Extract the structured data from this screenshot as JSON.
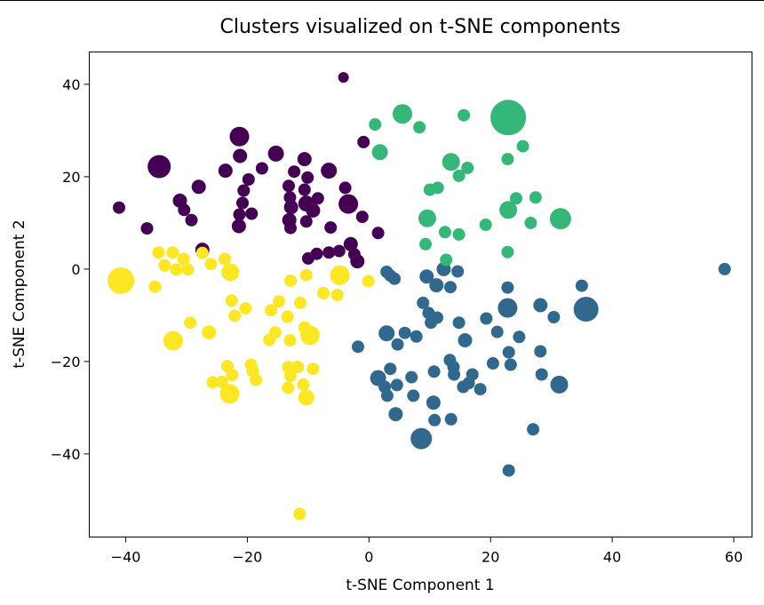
{
  "chart_data": {
    "type": "scatter",
    "title": "Clusters visualized on t-SNE components",
    "xlabel": "t-SNE Component 1",
    "ylabel": "t-SNE Component 2",
    "xlim": [
      -46,
      63
    ],
    "ylim": [
      -58,
      47
    ],
    "xticks": [
      -40,
      -20,
      0,
      20,
      40,
      60
    ],
    "yticks": [
      -40,
      -20,
      0,
      20,
      40
    ],
    "xtick_labels": [
      "−40",
      "−20",
      "0",
      "20",
      "40",
      "60"
    ],
    "ytick_labels": [
      "−40",
      "−20",
      "0",
      "20",
      "40"
    ],
    "grid": false,
    "legend": "none",
    "series": [
      {
        "color": "#440154",
        "points": [
          [
            -4.2,
            41.5
          ],
          [
            -21.3,
            28.7
          ],
          [
            -0.9,
            27.5
          ],
          [
            -34.5,
            22.2
          ],
          [
            -15.3,
            25.0
          ],
          [
            -21.2,
            24.5
          ],
          [
            -10.6,
            23.8
          ],
          [
            -23.6,
            21.3
          ],
          [
            -17.6,
            21.8
          ],
          [
            -12.3,
            21.1
          ],
          [
            -6.6,
            21.3
          ],
          [
            -10.1,
            19.8
          ],
          [
            -19.8,
            19.4
          ],
          [
            -28.0,
            17.8
          ],
          [
            -13.2,
            18.0
          ],
          [
            -20.6,
            17.0
          ],
          [
            -10.6,
            17.2
          ],
          [
            -3.9,
            17.6
          ],
          [
            -13.0,
            15.5
          ],
          [
            -31.1,
            14.8
          ],
          [
            -20.8,
            14.3
          ],
          [
            -10.3,
            14.2
          ],
          [
            -8.4,
            15.3
          ],
          [
            -12.8,
            13.4
          ],
          [
            -30.4,
            12.8
          ],
          [
            -3.4,
            14.1
          ],
          [
            -41.1,
            13.3
          ],
          [
            -19.3,
            12.0
          ],
          [
            -9.2,
            12.7
          ],
          [
            -21.3,
            11.8
          ],
          [
            -1.1,
            11.3
          ],
          [
            -29.2,
            10.6
          ],
          [
            -13.1,
            10.6
          ],
          [
            -10.3,
            10.3
          ],
          [
            -36.5,
            8.8
          ],
          [
            -21.4,
            9.3
          ],
          [
            -12.9,
            8.9
          ],
          [
            -6.3,
            9.0
          ],
          [
            1.5,
            7.8
          ],
          [
            -3.0,
            5.4
          ],
          [
            -4.9,
            3.9
          ],
          [
            -6.6,
            3.6
          ],
          [
            -27.4,
            4.2
          ],
          [
            -2.4,
            3.2
          ],
          [
            -8.6,
            3.3
          ],
          [
            -10.0,
            2.3
          ],
          [
            -1.9,
            1.7
          ]
        ],
        "sizes": [
          6,
          11,
          7,
          13,
          9,
          8,
          8,
          8,
          7,
          7,
          9,
          7,
          7,
          8,
          7,
          7,
          7,
          7,
          7,
          8,
          7,
          9,
          7,
          8,
          7,
          11,
          7,
          7,
          8,
          7,
          7,
          7,
          8,
          7,
          7,
          8,
          7,
          7,
          7,
          8,
          7,
          7,
          8,
          7,
          7,
          7,
          8
        ]
      },
      {
        "color": "#31688e",
        "points": [
          [
            58.5,
            0.0
          ],
          [
            2.9,
            -0.6
          ],
          [
            3.5,
            -1.4
          ],
          [
            12.3,
            0.0
          ],
          [
            14.6,
            -0.5
          ],
          [
            4.2,
            -2.1
          ],
          [
            9.5,
            -1.6
          ],
          [
            11.1,
            -3.5
          ],
          [
            22.8,
            -4.0
          ],
          [
            13.4,
            -3.9
          ],
          [
            35.0,
            -3.6
          ],
          [
            8.9,
            -7.3
          ],
          [
            22.8,
            -8.4
          ],
          [
            35.7,
            -8.7
          ],
          [
            28.2,
            -7.8
          ],
          [
            9.8,
            -9.5
          ],
          [
            11.2,
            -10.5
          ],
          [
            19.3,
            -10.7
          ],
          [
            10.2,
            -11.6
          ],
          [
            14.8,
            -11.6
          ],
          [
            30.4,
            -10.4
          ],
          [
            2.9,
            -13.9
          ],
          [
            5.9,
            -13.8
          ],
          [
            21.1,
            -13.6
          ],
          [
            24.7,
            -14.7
          ],
          [
            7.8,
            -14.6
          ],
          [
            -1.8,
            -16.8
          ],
          [
            4.7,
            -16.3
          ],
          [
            15.8,
            -15.4
          ],
          [
            28.2,
            -17.8
          ],
          [
            23.0,
            -18.0
          ],
          [
            13.3,
            -19.7
          ],
          [
            13.9,
            -21.2
          ],
          [
            20.4,
            -20.4
          ],
          [
            23.3,
            -20.7
          ],
          [
            3.5,
            -21.6
          ],
          [
            10.7,
            -22.2
          ],
          [
            14.0,
            -22.8
          ],
          [
            16.4,
            -24.7
          ],
          [
            17.0,
            -22.8
          ],
          [
            1.5,
            -23.6
          ],
          [
            7.0,
            -23.4
          ],
          [
            28.4,
            -22.8
          ],
          [
            31.3,
            -25.0
          ],
          [
            2.6,
            -25.5
          ],
          [
            4.6,
            -25.1
          ],
          [
            15.5,
            -25.5
          ],
          [
            18.3,
            -26.0
          ],
          [
            3.0,
            -27.4
          ],
          [
            7.3,
            -27.4
          ],
          [
            10.6,
            -28.9
          ],
          [
            4.4,
            -31.4
          ],
          [
            10.8,
            -32.7
          ],
          [
            13.5,
            -32.5
          ],
          [
            8.6,
            -36.7
          ],
          [
            27.0,
            -34.7
          ],
          [
            23.0,
            -43.6
          ]
        ],
        "sizes": [
          7,
          7,
          7,
          8,
          7,
          7,
          8,
          8,
          7,
          7,
          7,
          7,
          11,
          14,
          8,
          7,
          7,
          7,
          7,
          7,
          7,
          9,
          7,
          7,
          7,
          7,
          7,
          7,
          8,
          7,
          7,
          7,
          7,
          7,
          7,
          7,
          7,
          7,
          7,
          7,
          9,
          7,
          7,
          10,
          7,
          7,
          7,
          7,
          7,
          7,
          8,
          8,
          7,
          7,
          12,
          7,
          7
        ]
      },
      {
        "color": "#35b779",
        "points": [
          [
            5.5,
            33.6
          ],
          [
            15.6,
            33.3
          ],
          [
            22.9,
            32.8
          ],
          [
            1.0,
            31.3
          ],
          [
            8.3,
            30.7
          ],
          [
            25.3,
            26.6
          ],
          [
            1.8,
            25.3
          ],
          [
            22.8,
            23.8
          ],
          [
            13.5,
            23.2
          ],
          [
            16.2,
            21.9
          ],
          [
            14.8,
            20.2
          ],
          [
            10.0,
            17.2
          ],
          [
            11.3,
            17.6
          ],
          [
            24.2,
            15.3
          ],
          [
            27.4,
            15.5
          ],
          [
            22.9,
            12.8
          ],
          [
            9.6,
            11.0
          ],
          [
            31.5,
            10.9
          ],
          [
            26.6,
            10.0
          ],
          [
            19.2,
            9.6
          ],
          [
            12.5,
            8.0
          ],
          [
            14.8,
            7.5
          ],
          [
            9.3,
            5.4
          ],
          [
            22.8,
            3.7
          ],
          [
            12.7,
            2.0
          ]
        ],
        "sizes": [
          11,
          7,
          20,
          7,
          7,
          7,
          9,
          7,
          10,
          7,
          7,
          7,
          7,
          7,
          7,
          10,
          10,
          12,
          7,
          7,
          7,
          7,
          7,
          7,
          7
        ]
      },
      {
        "color": "#fde725",
        "points": [
          [
            -34.6,
            3.6
          ],
          [
            -32.3,
            3.6
          ],
          [
            -27.4,
            3.5
          ],
          [
            -30.5,
            2.2
          ],
          [
            -23.7,
            2.2
          ],
          [
            -33.6,
            0.8
          ],
          [
            -26.0,
            1.1
          ],
          [
            -31.7,
            -0.1
          ],
          [
            -29.8,
            -0.1
          ],
          [
            -40.8,
            -2.5
          ],
          [
            -22.8,
            -0.7
          ],
          [
            -10.3,
            -1.3
          ],
          [
            -4.8,
            -1.3
          ],
          [
            -12.9,
            -2.5
          ],
          [
            -0.1,
            -2.6
          ],
          [
            -35.2,
            -3.8
          ],
          [
            -7.5,
            -5.2
          ],
          [
            -5.2,
            -5.6
          ],
          [
            -22.6,
            -6.8
          ],
          [
            -14.8,
            -7.0
          ],
          [
            -20.3,
            -8.5
          ],
          [
            -11.3,
            -7.3
          ],
          [
            -16.1,
            -8.9
          ],
          [
            -22.1,
            -10.1
          ],
          [
            -13.4,
            -10.3
          ],
          [
            -29.4,
            -11.6
          ],
          [
            -10.6,
            -12.6
          ],
          [
            -15.4,
            -13.7
          ],
          [
            -26.3,
            -13.7
          ],
          [
            -9.7,
            -14.3
          ],
          [
            -32.2,
            -15.5
          ],
          [
            -13.0,
            -15.4
          ],
          [
            -16.4,
            -15.3
          ],
          [
            -23.3,
            -21.0
          ],
          [
            -19.4,
            -20.7
          ],
          [
            -13.3,
            -21.2
          ],
          [
            -11.7,
            -21.2
          ],
          [
            -9.2,
            -21.6
          ],
          [
            -19.1,
            -22.1
          ],
          [
            -22.5,
            -22.9
          ],
          [
            -12.9,
            -23.1
          ],
          [
            -18.6,
            -24.0
          ],
          [
            -25.7,
            -24.5
          ],
          [
            -24.2,
            -24.4
          ],
          [
            -13.3,
            -25.7
          ],
          [
            -10.8,
            -25.0
          ],
          [
            -22.9,
            -27.0
          ],
          [
            -10.3,
            -27.8
          ],
          [
            -11.4,
            -53.0
          ]
        ],
        "sizes": [
          7,
          7,
          7,
          7,
          7,
          7,
          7,
          7,
          7,
          15,
          10,
          7,
          11,
          7,
          7,
          7,
          7,
          7,
          7,
          7,
          7,
          7,
          7,
          7,
          7,
          7,
          7,
          7,
          8,
          11,
          11,
          7,
          7,
          7,
          7,
          7,
          7,
          7,
          7,
          7,
          7,
          7,
          7,
          7,
          7,
          7,
          11,
          9,
          7
        ]
      }
    ]
  }
}
